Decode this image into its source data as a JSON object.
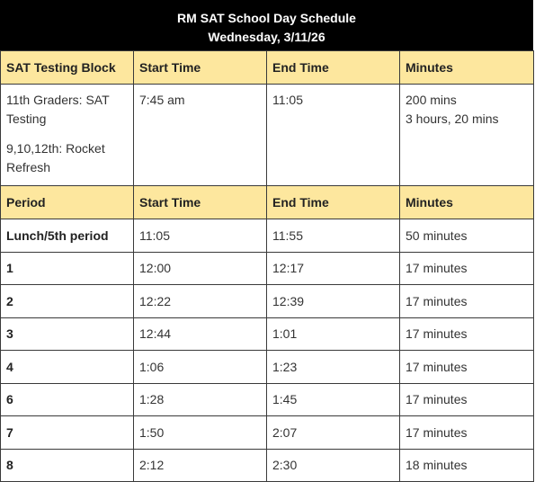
{
  "title": {
    "line1": "RM SAT School Day Schedule",
    "line2": "Wednesday, 3/11/26"
  },
  "testing_header": [
    "SAT Testing Block",
    "Start Time",
    "End Time",
    "Minutes"
  ],
  "testing_row": {
    "block_lines": [
      "11th Graders: SAT Testing",
      "9,10,12th:  Rocket Refresh"
    ],
    "start": "7:45 am",
    "end": "11:05",
    "minutes_lines": [
      "200 mins",
      "3 hours, 20 mins"
    ]
  },
  "period_header": [
    "Period",
    "Start Time",
    "End Time",
    "Minutes"
  ],
  "periods": [
    {
      "period": "Lunch/5th period",
      "start": "11:05",
      "end": "11:55",
      "minutes": "50 minutes"
    },
    {
      "period": "1",
      "start": "12:00",
      "end": "12:17",
      "minutes": "17 minutes"
    },
    {
      "period": "2",
      "start": "12:22",
      "end": "12:39",
      "minutes": "17 minutes"
    },
    {
      "period": "3",
      "start": "12:44",
      "end": "1:01",
      "minutes": "17 minutes"
    },
    {
      "period": "4",
      "start": "1:06",
      "end": "1:23",
      "minutes": "17 minutes"
    },
    {
      "period": "6",
      "start": "1:28",
      "end": "1:45",
      "minutes": "17 minutes"
    },
    {
      "period": "7",
      "start": "1:50",
      "end": "2:07",
      "minutes": "17 minutes"
    },
    {
      "period": "8",
      "start": "2:12",
      "end": "2:30",
      "minutes": "18 minutes"
    }
  ],
  "colors": {
    "title_background": "#000000",
    "header_background": "#fde79e",
    "border": "#3a3a3a"
  }
}
